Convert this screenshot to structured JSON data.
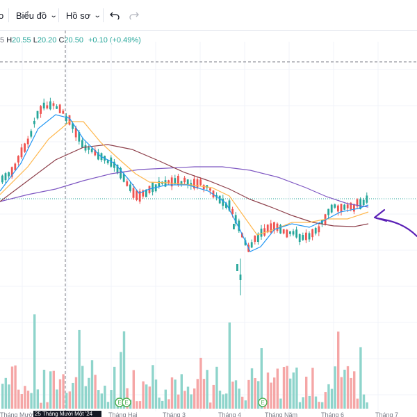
{
  "toolbar": {
    "partial_left": "o",
    "chart_type_label": "Biểu đồ",
    "profile_label": "Hồ sơ",
    "undo_icon": "undo-icon",
    "redo_icon": "redo-icon"
  },
  "legend": {
    "partial_prefix": "5",
    "high_label": "H",
    "high_value": "20.55",
    "low_label": "L",
    "low_value": "20.20",
    "close_label": "C",
    "close_value": "20.50",
    "change": "+0.10 (+0.49%)"
  },
  "colors": {
    "up": "#26a69a",
    "down": "#ef5350",
    "ma_fast": "#2196f3",
    "ma_mid": "#ffb74d",
    "ma_slow": "#8d3f4a",
    "ma_long": "#7e57c2",
    "annotation": "#5b21b6"
  },
  "x_axis": {
    "labels": [
      "Tháng Mười",
      "Tháng Hai",
      "Tháng 3",
      "Tháng 4",
      "Tháng Năm",
      "Tháng 6",
      "Tháng 7"
    ],
    "crosshair_label": "25 Tháng Mười Một '24"
  },
  "events": {
    "marker_letter": "E"
  },
  "chart_data": {
    "type": "candlestick",
    "note": "price candles with moving averages and volume histogram",
    "close_line": 20.5
  }
}
